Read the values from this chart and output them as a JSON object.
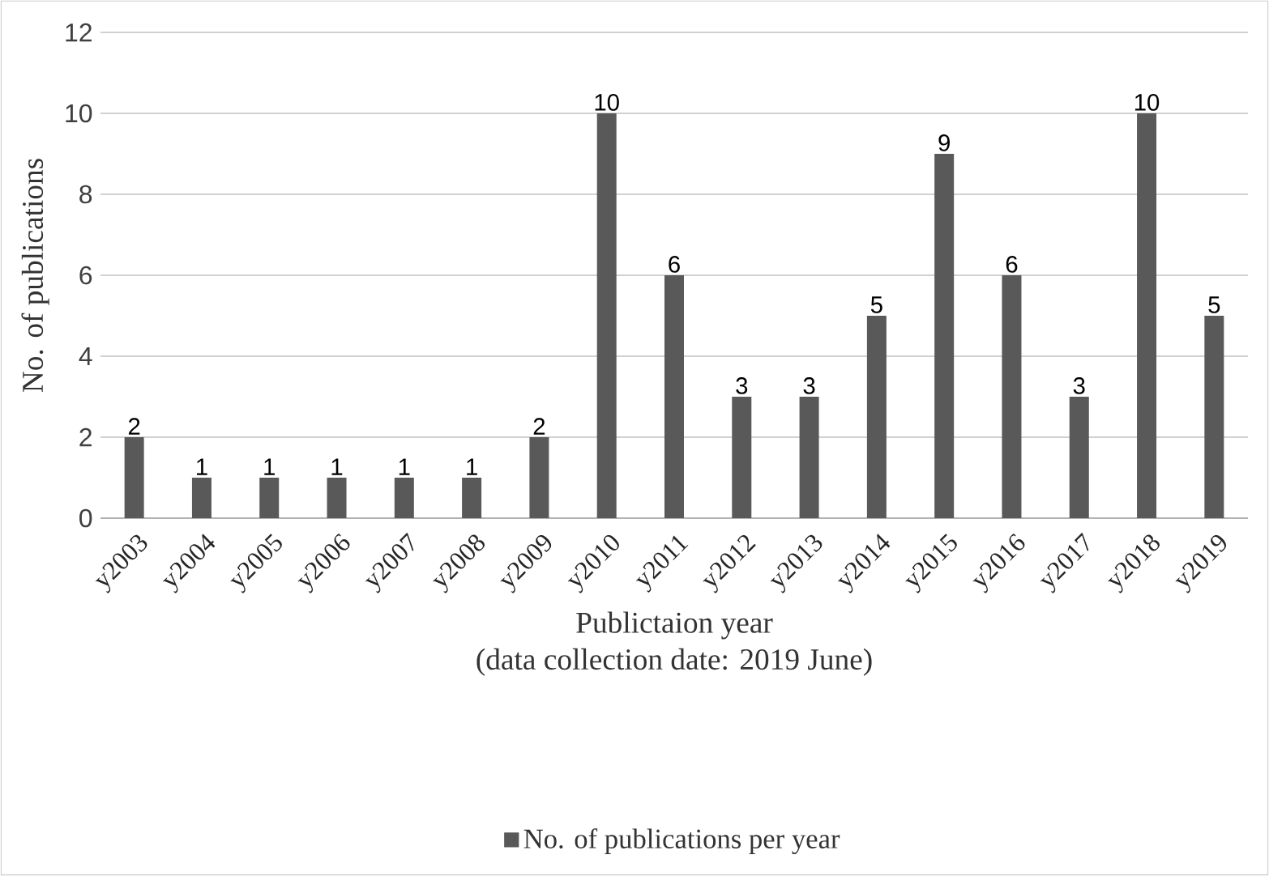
{
  "chart_data": {
    "type": "bar",
    "xlabel": "Publictaion year",
    "ylabel": "No. of publications",
    "annotations": [
      "(data collection date: 2019 June)"
    ],
    "categories": [
      "y2003",
      "y2004",
      "y2005",
      "y2006",
      "y2007",
      "y2008",
      "y2009",
      "y2010",
      "y2011",
      "y2012",
      "y2013",
      "y2014",
      "y2015",
      "y2016",
      "y2017",
      "y2018",
      "y2019"
    ],
    "series": [
      {
        "name": "No. of publications per year",
        "color": "#595959",
        "values": [
          2,
          1,
          1,
          1,
          1,
          1,
          2,
          10,
          6,
          3,
          3,
          5,
          9,
          6,
          3,
          10,
          5
        ]
      }
    ],
    "ylim": [
      0,
      12
    ],
    "yticks": [
      0,
      2,
      4,
      6,
      8,
      10,
      12
    ],
    "grid": "y",
    "legend": "bottom",
    "data_labels": true
  }
}
